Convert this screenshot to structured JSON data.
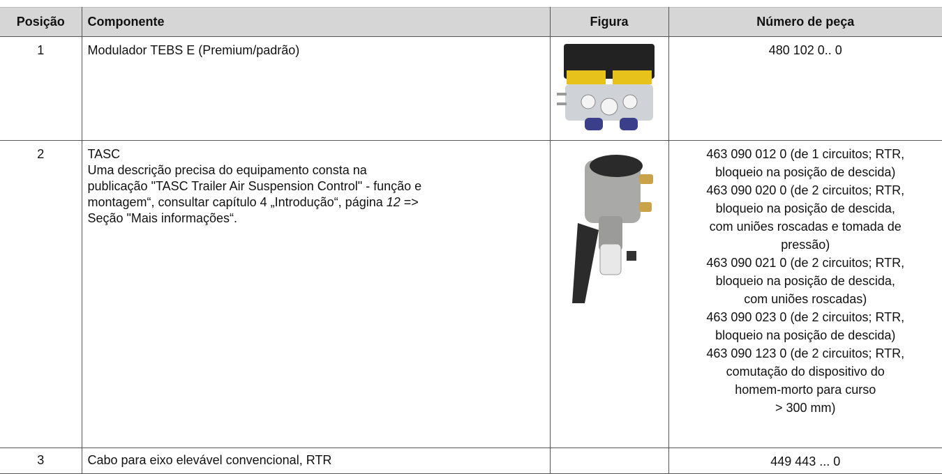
{
  "table": {
    "header": [
      "Posição",
      "Componente",
      "Figura",
      "Número de peça"
    ],
    "rows": [
      {
        "position": "1",
        "component": [
          [
            "Modulador TEBS E (Premium/padrão)"
          ]
        ],
        "part_number": [
          "480 102 0.. 0"
        ]
      },
      {
        "position": "2",
        "component": [
          [
            "TASC"
          ],
          [
            "Uma descrição precisa do equipamento consta na"
          ],
          [
            "publicação \"TASC Trailer Air Suspension Control\" - função e"
          ],
          [
            "montagem“, consultar capítulo 4 „Introdução“, página ",
            "12",
            " =>"
          ],
          [
            "Seção \"Mais informações“."
          ]
        ],
        "part_number": [
          "463 090 012 0 (de 1 circuitos; RTR,",
          "bloqueio na posição de descida)",
          "463 090 020 0 (de 2 circuitos; RTR,",
          "bloqueio na posição de descida,",
          "com uniões roscadas e tomada de",
          "pressão)",
          "463 090 021 0 (de 2 circuitos; RTR,",
          "bloqueio na posição de descida,",
          "com uniões roscadas)",
          "463 090 023 0 (de 2 circuitos; RTR,",
          "bloqueio na posição de descida)",
          "463 090 123 0 (de 2 circuitos; RTR,",
          "comutação do dispositivo do",
          "homem-morto para curso",
          "> 300 mm)"
        ]
      },
      {
        "position": "3",
        "component": [
          [
            "Cabo para eixo elevável convencional, RTR"
          ]
        ],
        "part_number": [
          "449 443 ... 0"
        ]
      }
    ]
  }
}
